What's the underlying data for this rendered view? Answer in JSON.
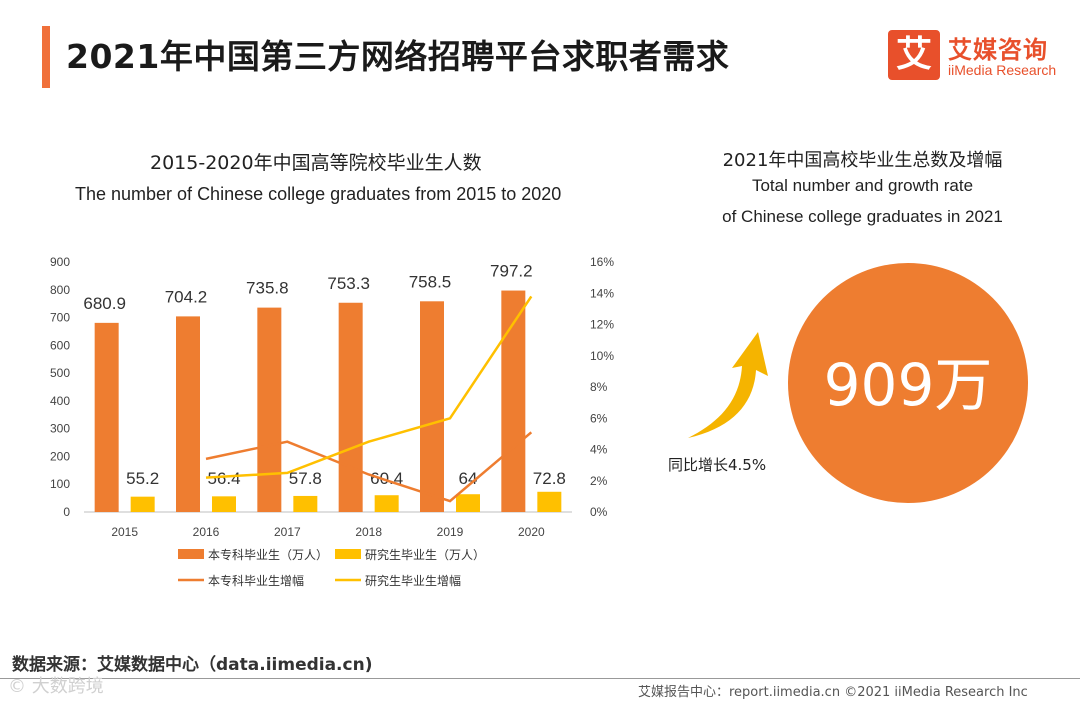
{
  "header": {
    "title": "2021年中国第三方网络招聘平台求职者需求",
    "logo_icon_char": "艾",
    "logo_cn": "艾媒咨询",
    "logo_en": "iiMedia Research"
  },
  "left_chart": {
    "title_cn": "2015-2020年中国高等院校毕业生人数",
    "title_en": "The number of Chinese college graduates from 2015 to 2020"
  },
  "chart_data": {
    "type": "bar",
    "categories": [
      "2015",
      "2016",
      "2017",
      "2018",
      "2019",
      "2020"
    ],
    "series": [
      {
        "name": "本专科毕业生（万人）",
        "kind": "bar",
        "axis": "left",
        "color": "#ee7d30",
        "values": [
          680.9,
          704.2,
          735.8,
          753.3,
          758.5,
          797.2
        ]
      },
      {
        "name": "研究生毕业生（万人）",
        "kind": "bar",
        "axis": "left",
        "color": "#ffc000",
        "values": [
          55.2,
          56.4,
          57.8,
          60.4,
          64,
          72.8
        ]
      },
      {
        "name": "本专科毕业生增幅",
        "kind": "line",
        "axis": "right",
        "color": "#ee7d30",
        "values": [
          null,
          3.4,
          4.5,
          2.4,
          0.7,
          5.1
        ]
      },
      {
        "name": "研究生毕业生增幅",
        "kind": "line",
        "axis": "right",
        "color": "#ffc000",
        "values": [
          null,
          2.2,
          2.5,
          4.5,
          6.0,
          13.8
        ]
      }
    ],
    "y_left": {
      "min": 0,
      "max": 900,
      "ticks": [
        "0",
        "100",
        "200",
        "300",
        "400",
        "500",
        "600",
        "700",
        "800",
        "900"
      ]
    },
    "y_right": {
      "min": 0,
      "max": 16,
      "ticks": [
        "0%",
        "2%",
        "4%",
        "6%",
        "8%",
        "10%",
        "12%",
        "14%",
        "16%"
      ]
    },
    "legend_position": "bottom",
    "grid": false
  },
  "right_panel": {
    "title_cn": "2021年中国高校毕业生总数及增幅",
    "title_en_line1": "Total number and growth rate",
    "title_en_line2": "of Chinese college graduates in 2021",
    "big_number": "909万",
    "growth_label": "同比增长4.5%",
    "circle_color": "#ee7d30",
    "arrow_color": "#f5b400"
  },
  "footer": {
    "source": "数据来源：艾媒数据中心（data.iimedia.cn)",
    "watermark": "© 大数跨境",
    "report": "艾媒报告中心：report.iimedia.cn  ©2021  iiMedia Research  Inc"
  }
}
